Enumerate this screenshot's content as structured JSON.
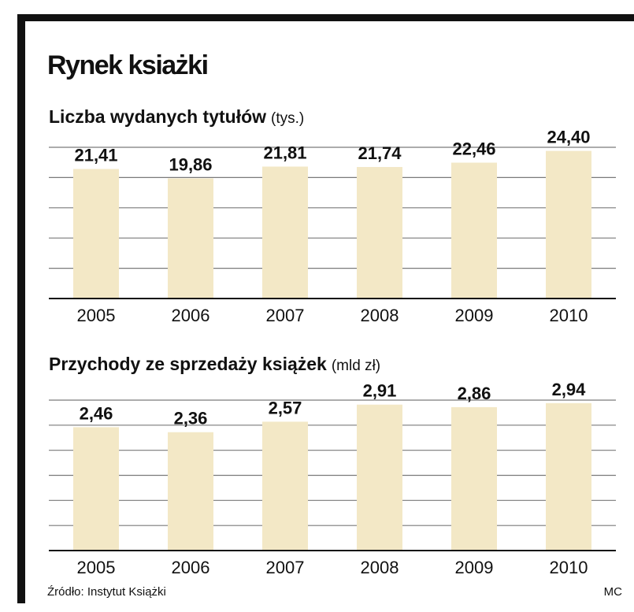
{
  "title": "Rynek ksiażki",
  "source": "Źródło: Instytut Książki",
  "credit": "MC",
  "chart_data": [
    {
      "type": "bar",
      "title": "Liczba wydanych tytułów",
      "unit_label": "(tys.)",
      "categories": [
        "2005",
        "2006",
        "2007",
        "2008",
        "2009",
        "2010"
      ],
      "values": [
        21.41,
        19.86,
        21.81,
        21.74,
        22.46,
        24.4
      ],
      "value_labels": [
        "21,41",
        "19,86",
        "21,81",
        "21,74",
        "22,46",
        "24,40"
      ],
      "color": "#f3e8c6",
      "ylim": [
        0,
        25
      ],
      "yticks": [
        0,
        5,
        10,
        15,
        20,
        25
      ],
      "grid": true
    },
    {
      "type": "bar",
      "title": "Przychody ze sprzedaży książek",
      "unit_label": "(mld zł)",
      "categories": [
        "2005",
        "2006",
        "2007",
        "2008",
        "2009",
        "2010"
      ],
      "values": [
        2.46,
        2.36,
        2.57,
        2.91,
        2.86,
        2.94
      ],
      "value_labels": [
        "2,46",
        "2,36",
        "2,57",
        "2,91",
        "2,86",
        "2,94"
      ],
      "color": "#f3e8c6",
      "ylim": [
        0,
        3
      ],
      "yticks": [
        0,
        0.5,
        1,
        1.5,
        2,
        2.5,
        3
      ],
      "grid": true
    }
  ]
}
